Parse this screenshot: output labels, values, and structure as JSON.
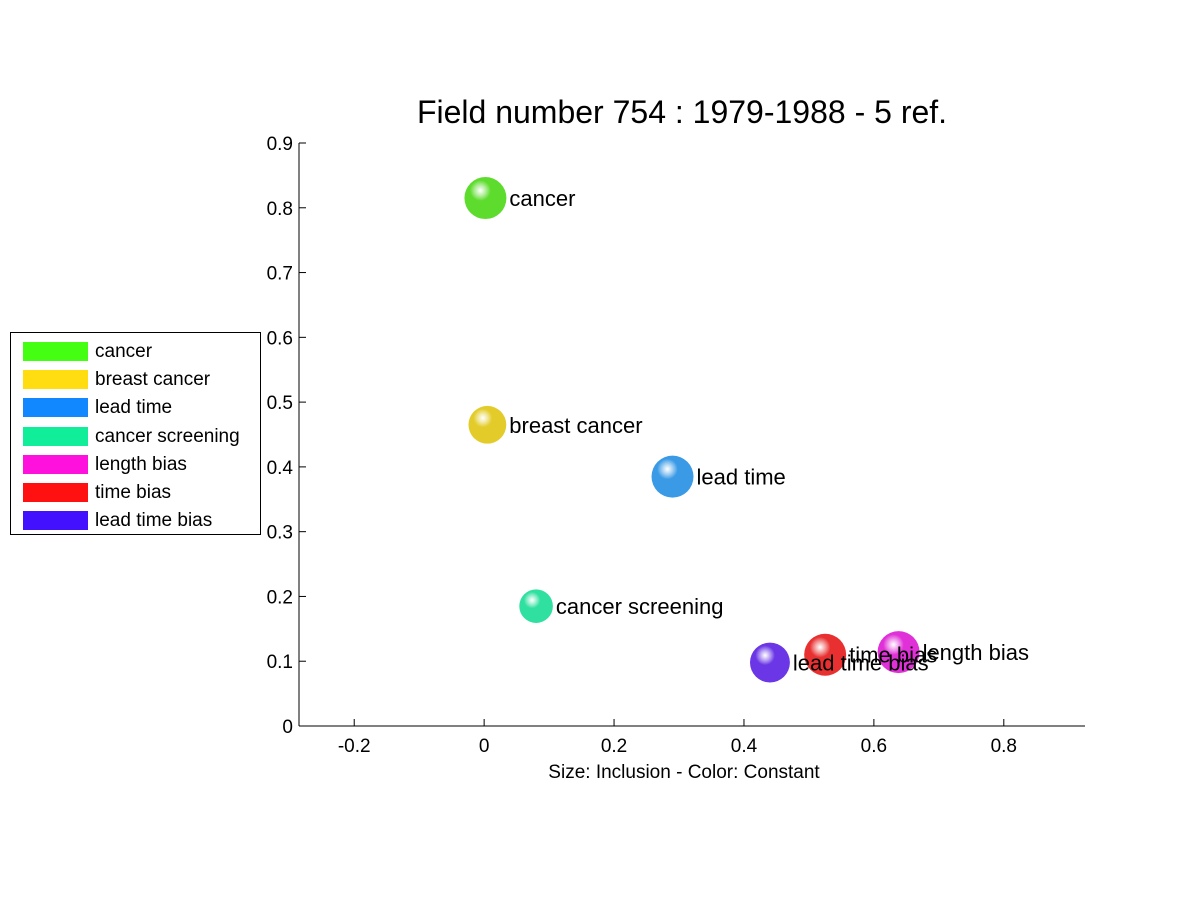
{
  "chart_data": {
    "type": "scatter",
    "title": "Field number 754 : 1979-1988  - 5 ref.",
    "xlabel": "Size: Inclusion - Color: Constant",
    "ylabel": "",
    "xlim": [
      -0.285,
      0.925
    ],
    "ylim": [
      0,
      0.9
    ],
    "xticks": [
      "-0.2",
      "0",
      "0.2",
      "0.4",
      "0.6",
      "0.8"
    ],
    "xtick_values": [
      -0.2,
      0,
      0.2,
      0.4,
      0.6,
      0.8
    ],
    "yticks": [
      "0",
      "0.1",
      "0.2",
      "0.3",
      "0.4",
      "0.5",
      "0.6",
      "0.7",
      "0.8",
      "0.9"
    ],
    "ytick_values": [
      0,
      0.1,
      0.2,
      0.3,
      0.4,
      0.5,
      0.6,
      0.7,
      0.8,
      0.9
    ],
    "grid": false,
    "legend_position": "left",
    "points": [
      {
        "label": "cancer",
        "x": 0.002,
        "y": 0.815,
        "size": 1.0,
        "color": "#5edc2e"
      },
      {
        "label": "breast cancer",
        "x": 0.005,
        "y": 0.465,
        "size": 0.9,
        "color": "#e3cc2a"
      },
      {
        "label": "lead time",
        "x": 0.29,
        "y": 0.385,
        "size": 1.0,
        "color": "#3a9ae6"
      },
      {
        "label": "cancer screening",
        "x": 0.08,
        "y": 0.185,
        "size": 0.8,
        "color": "#2fe0a0"
      },
      {
        "label": "length bias",
        "x": 0.638,
        "y": 0.114,
        "size": 1.0,
        "color": "#e030d8"
      },
      {
        "label": "time bias",
        "x": 0.525,
        "y": 0.11,
        "size": 1.0,
        "color": "#e83030"
      },
      {
        "label": "lead time bias",
        "x": 0.44,
        "y": 0.098,
        "size": 0.95,
        "color": "#6a36e6"
      }
    ],
    "legend": [
      {
        "label": "cancer",
        "color": "#44ff11"
      },
      {
        "label": "breast cancer",
        "color": "#ffdd11"
      },
      {
        "label": "lead time",
        "color": "#1188ff"
      },
      {
        "label": "cancer screening",
        "color": "#11ee99"
      },
      {
        "label": "length bias",
        "color": "#ff11dd"
      },
      {
        "label": "time bias",
        "color": "#ff1111"
      },
      {
        "label": "lead time bias",
        "color": "#4411ff"
      }
    ]
  }
}
